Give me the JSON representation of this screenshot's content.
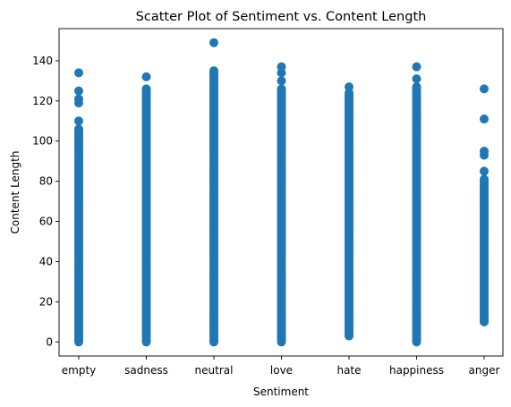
{
  "chart_data": {
    "type": "scatter",
    "title": "Scatter Plot of Sentiment vs. Content Length",
    "xlabel": "Sentiment",
    "ylabel": "Content Length",
    "categories": [
      "empty",
      "sadness",
      "neutral",
      "love",
      "hate",
      "happiness",
      "anger"
    ],
    "yticks": [
      0,
      20,
      40,
      60,
      80,
      100,
      120,
      140
    ],
    "ylim": [
      -7,
      156
    ],
    "grid": false,
    "color": "#1f77b4",
    "series": [
      {
        "values": [
          {
            "category": "empty",
            "dense_min": 0,
            "dense_max": 106,
            "outliers": [
              110,
              119,
              121,
              125,
              134
            ]
          },
          {
            "category": "sadness",
            "dense_min": 0,
            "dense_max": 126,
            "outliers": [
              132
            ]
          },
          {
            "category": "neutral",
            "dense_min": 0,
            "dense_max": 135,
            "outliers": [
              149
            ]
          },
          {
            "category": "love",
            "dense_min": 0,
            "dense_max": 126,
            "outliers": [
              130,
              134,
              137
            ]
          },
          {
            "category": "hate",
            "dense_min": 3,
            "dense_max": 124,
            "outliers": [
              127
            ]
          },
          {
            "category": "happiness",
            "dense_min": 0,
            "dense_max": 127,
            "outliers": [
              131,
              137
            ]
          },
          {
            "category": "anger",
            "dense_min": 10,
            "dense_max": 81,
            "outliers": [
              85,
              93,
              95,
              111,
              126
            ]
          }
        ]
      }
    ]
  }
}
